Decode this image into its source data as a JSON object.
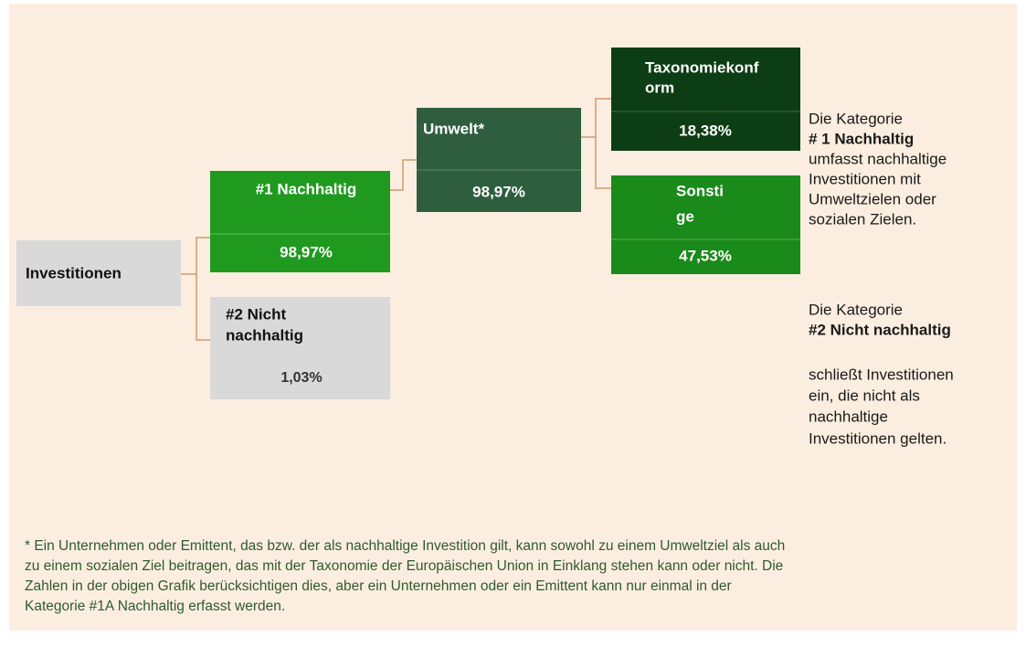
{
  "nodes": [
    {
      "label": [
        "Investitionen"
      ]
    },
    {
      "label": [
        "#1 Nachhaltig"
      ],
      "value": "98,97%"
    },
    {
      "label": [
        "#2 Nicht",
        "nachhaltig"
      ],
      "value": "1,03%"
    },
    {
      "label": [
        "Umwelt*"
      ],
      "value": "98,97%"
    },
    {
      "label": [
        "Taxonomiekonf",
        "orm"
      ],
      "value": "18,38%"
    },
    {
      "label": [
        "Sonsti",
        "ge"
      ],
      "value": "47,53%"
    }
  ],
  "notes": [
    {
      "lines": [
        "Die Kategorie",
        "# 1 Nachhaltig",
        "umfasst nachhaltige",
        "Investitionen mit",
        "Umweltzielen oder",
        "sozialen Zielen."
      ]
    },
    {
      "lines": [
        "Die Kategorie",
        "#2 Nicht nachhaltig",
        "schließt Investitionen",
        "ein, die nicht als",
        "nachhaltige",
        "Investitionen gelten."
      ]
    }
  ],
  "footnote": [
    "* Ein Unternehmen oder Emittent, das bzw. der als nachhaltige Investition gilt, kann sowohl zu einem Umweltziel als auch",
    "zu einem sozialen Ziel beitragen, das mit der Taxonomie der Europäischen Union in Einklang stehen kann oder nicht. Die",
    "Zahlen in der obigen Grafik berücksichtigen dies, aber ein Unternehmen oder ein Emittent kann nur einmal in der",
    "Kategorie #1A Nachhaltig erfasst werden."
  ]
}
